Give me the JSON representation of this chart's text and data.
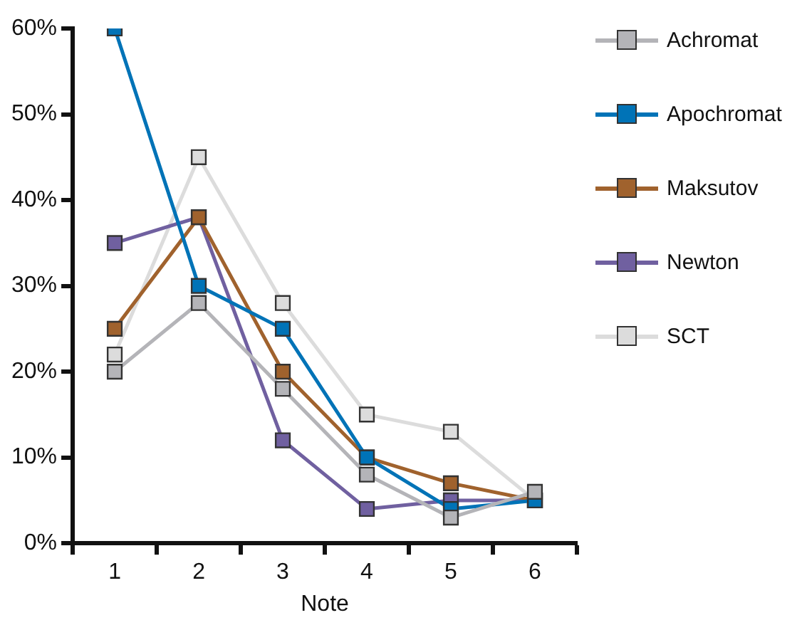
{
  "chart_data": {
    "type": "line",
    "xlabel": "Note",
    "categories": [
      "1",
      "2",
      "3",
      "4",
      "5",
      "6"
    ],
    "series": [
      {
        "name": "Achromat",
        "color": "#b4b4b8",
        "values": [
          20,
          28,
          18,
          8,
          3,
          6
        ]
      },
      {
        "name": "Apochromat",
        "color": "#0073b7",
        "values": [
          60,
          30,
          25,
          10,
          4,
          5
        ]
      },
      {
        "name": "Maksutov",
        "color": "#a0622d",
        "values": [
          25,
          38,
          20,
          10,
          7,
          5
        ]
      },
      {
        "name": "Newton",
        "color": "#7060a0",
        "values": [
          35,
          38,
          12,
          4,
          5,
          5
        ]
      },
      {
        "name": "SCT",
        "color": "#dcdcdc",
        "values": [
          22,
          45,
          28,
          15,
          13,
          5
        ]
      }
    ],
    "ylim": [
      0,
      60
    ],
    "yticks": [
      {
        "value": 0,
        "label": "0%"
      },
      {
        "value": 10,
        "label": "10%"
      },
      {
        "value": 20,
        "label": "20%"
      },
      {
        "value": 30,
        "label": "30%"
      },
      {
        "value": 40,
        "label": "40%"
      },
      {
        "value": 50,
        "label": "50%"
      },
      {
        "value": 60,
        "label": "60%"
      }
    ],
    "grid": false,
    "legend": "top right",
    "marker": "square",
    "line_style": "solid"
  }
}
